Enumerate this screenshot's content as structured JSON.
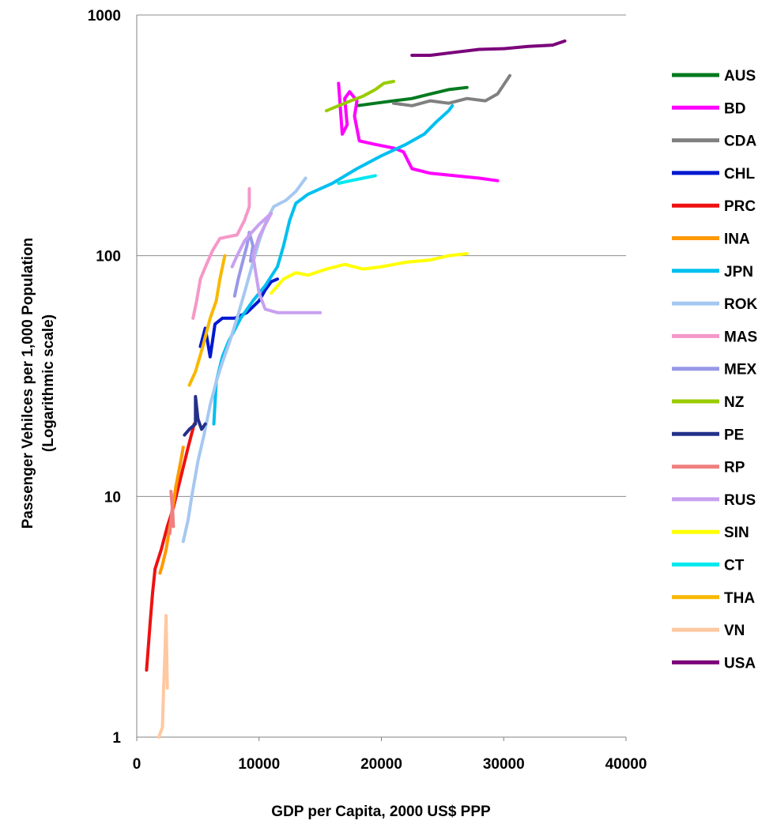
{
  "chart_data": {
    "type": "line",
    "title": "",
    "xlabel": "GDP per Capita, 2000 US$ PPP",
    "ylabel": "Passenger Vehilces per 1,000 Population",
    "ylabel_sub": "(Logarithmic scale)",
    "xlim": [
      0,
      40000
    ],
    "ylim": [
      1,
      1000
    ],
    "yscale": "log",
    "x_ticks": [
      "0",
      "10000",
      "20000",
      "30000",
      "40000"
    ],
    "y_ticks": [
      "1",
      "10",
      "100",
      "1000"
    ],
    "grid": "horizontal",
    "legend_position": "right",
    "series": [
      {
        "name": "AUS",
        "color": "#007a1f",
        "points": [
          [
            18000,
            420
          ],
          [
            19500,
            430
          ],
          [
            21000,
            440
          ],
          [
            22500,
            450
          ],
          [
            24000,
            470
          ],
          [
            25500,
            490
          ],
          [
            27000,
            500
          ]
        ]
      },
      {
        "name": "BD",
        "color": "#ff00ff",
        "points": [
          [
            16500,
            520
          ],
          [
            16800,
            320
          ],
          [
            17200,
            350
          ],
          [
            17000,
            450
          ],
          [
            17400,
            480
          ],
          [
            18000,
            440
          ],
          [
            17800,
            380
          ],
          [
            18200,
            300
          ],
          [
            19500,
            290
          ],
          [
            21000,
            280
          ],
          [
            21800,
            270
          ],
          [
            22500,
            230
          ],
          [
            24000,
            220
          ],
          [
            26000,
            215
          ],
          [
            28000,
            210
          ],
          [
            29500,
            205
          ]
        ]
      },
      {
        "name": "CDA",
        "color": "#808080",
        "points": [
          [
            21000,
            430
          ],
          [
            22500,
            420
          ],
          [
            24000,
            440
          ],
          [
            25500,
            430
          ],
          [
            27000,
            450
          ],
          [
            28500,
            440
          ],
          [
            29500,
            470
          ],
          [
            30500,
            560
          ]
        ]
      },
      {
        "name": "CHL",
        "color": "#0018d0",
        "points": [
          [
            5200,
            42
          ],
          [
            5600,
            50
          ],
          [
            6000,
            38
          ],
          [
            6400,
            52
          ],
          [
            7000,
            55
          ],
          [
            8000,
            55
          ],
          [
            9000,
            58
          ],
          [
            10000,
            65
          ],
          [
            10500,
            72
          ],
          [
            11000,
            78
          ],
          [
            11500,
            80
          ]
        ]
      },
      {
        "name": "PRC",
        "color": "#ee1111",
        "points": [
          [
            800,
            1.9
          ],
          [
            900,
            2.2
          ],
          [
            1100,
            3
          ],
          [
            1300,
            4
          ],
          [
            1500,
            5
          ],
          [
            2000,
            6
          ],
          [
            2500,
            7.5
          ],
          [
            3000,
            9
          ],
          [
            3600,
            12
          ],
          [
            4200,
            16
          ],
          [
            4700,
            20
          ]
        ]
      },
      {
        "name": "INA",
        "color": "#ff9900",
        "points": [
          [
            1900,
            4.8
          ],
          [
            2100,
            5.2
          ],
          [
            2400,
            6
          ],
          [
            2800,
            8
          ],
          [
            3200,
            11
          ],
          [
            3600,
            14
          ],
          [
            3800,
            16
          ]
        ]
      },
      {
        "name": "JPN",
        "color": "#00bff0",
        "points": [
          [
            6300,
            20
          ],
          [
            6500,
            30
          ],
          [
            7000,
            38
          ],
          [
            7500,
            44
          ],
          [
            8500,
            55
          ],
          [
            9500,
            65
          ],
          [
            10500,
            75
          ],
          [
            11500,
            90
          ],
          [
            12000,
            110
          ],
          [
            12500,
            140
          ],
          [
            13000,
            165
          ],
          [
            14000,
            180
          ],
          [
            16000,
            200
          ],
          [
            18000,
            230
          ],
          [
            20000,
            260
          ],
          [
            22000,
            290
          ],
          [
            23500,
            320
          ],
          [
            24500,
            360
          ],
          [
            25500,
            400
          ],
          [
            25800,
            420
          ]
        ]
      },
      {
        "name": "ROK",
        "color": "#a6c8f0",
        "points": [
          [
            3800,
            6.5
          ],
          [
            4200,
            8
          ],
          [
            4500,
            10
          ],
          [
            5000,
            14
          ],
          [
            5500,
            18
          ],
          [
            6000,
            24
          ],
          [
            6500,
            30
          ],
          [
            7000,
            36
          ],
          [
            7600,
            44
          ],
          [
            8200,
            55
          ],
          [
            8800,
            70
          ],
          [
            9400,
            90
          ],
          [
            10000,
            115
          ],
          [
            10600,
            140
          ],
          [
            11200,
            160
          ],
          [
            12200,
            170
          ],
          [
            13000,
            185
          ],
          [
            13800,
            210
          ]
        ]
      },
      {
        "name": "MAS",
        "color": "#f598c8",
        "points": [
          [
            4600,
            55
          ],
          [
            4900,
            65
          ],
          [
            5200,
            80
          ],
          [
            5700,
            92
          ],
          [
            6200,
            105
          ],
          [
            6800,
            118
          ],
          [
            7500,
            120
          ],
          [
            8200,
            122
          ],
          [
            8800,
            140
          ],
          [
            9200,
            160
          ],
          [
            9200,
            190
          ]
        ]
      },
      {
        "name": "MEX",
        "color": "#9898e8",
        "points": [
          [
            8000,
            68
          ],
          [
            8300,
            80
          ],
          [
            8600,
            92
          ],
          [
            9000,
            110
          ],
          [
            9200,
            125
          ],
          [
            9500,
            110
          ],
          [
            9300,
            95
          ]
        ]
      },
      {
        "name": "NZ",
        "color": "#99cc00",
        "points": [
          [
            15500,
            400
          ],
          [
            16500,
            420
          ],
          [
            17500,
            440
          ],
          [
            18500,
            460
          ],
          [
            19500,
            490
          ],
          [
            20200,
            520
          ],
          [
            21000,
            530
          ]
        ]
      },
      {
        "name": "PE",
        "color": "#24308a",
        "points": [
          [
            3900,
            18
          ],
          [
            4300,
            19
          ],
          [
            4800,
            20
          ],
          [
            4800,
            26
          ],
          [
            5000,
            21
          ],
          [
            5300,
            19
          ],
          [
            5600,
            20
          ]
        ]
      },
      {
        "name": "RP",
        "color": "#f08080",
        "points": [
          [
            2700,
            7
          ],
          [
            2800,
            8
          ],
          [
            2900,
            9
          ],
          [
            2800,
            10.5
          ],
          [
            2900,
            9.5
          ],
          [
            3000,
            7.5
          ]
        ]
      },
      {
        "name": "RUS",
        "color": "#c8a0f0",
        "points": [
          [
            7800,
            90
          ],
          [
            8200,
            100
          ],
          [
            8800,
            115
          ],
          [
            9400,
            125
          ],
          [
            10000,
            135
          ],
          [
            11000,
            150
          ],
          [
            10000,
            120
          ],
          [
            9500,
            100
          ],
          [
            10000,
            70
          ],
          [
            10500,
            60
          ],
          [
            11500,
            58
          ],
          [
            13000,
            58
          ],
          [
            15000,
            58
          ]
        ]
      },
      {
        "name": "SIN",
        "color": "#ffff00",
        "points": [
          [
            11000,
            70
          ],
          [
            12000,
            80
          ],
          [
            13000,
            85
          ],
          [
            14000,
            83
          ],
          [
            15500,
            88
          ],
          [
            17000,
            92
          ],
          [
            18500,
            88
          ],
          [
            20000,
            90
          ],
          [
            22000,
            94
          ],
          [
            24000,
            96
          ],
          [
            25500,
            100
          ],
          [
            27000,
            102
          ]
        ]
      },
      {
        "name": "CT",
        "color": "#00e8f0",
        "points": [
          [
            16500,
            200
          ],
          [
            17500,
            205
          ],
          [
            18500,
            210
          ],
          [
            19500,
            215
          ]
        ]
      },
      {
        "name": "THA",
        "color": "#f8b800",
        "points": [
          [
            4300,
            29
          ],
          [
            4800,
            33
          ],
          [
            5400,
            42
          ],
          [
            6000,
            55
          ],
          [
            6500,
            65
          ],
          [
            6800,
            80
          ],
          [
            7200,
            100
          ]
        ]
      },
      {
        "name": "VN",
        "color": "#ffc8a0",
        "points": [
          [
            1800,
            1
          ],
          [
            2100,
            1.1
          ],
          [
            2200,
            1.6
          ],
          [
            2300,
            2.2
          ],
          [
            2400,
            3.2
          ],
          [
            2500,
            1.6
          ]
        ]
      },
      {
        "name": "USA",
        "color": "#7a007a",
        "points": [
          [
            22500,
            680
          ],
          [
            24000,
            680
          ],
          [
            26000,
            700
          ],
          [
            28000,
            720
          ],
          [
            30000,
            725
          ],
          [
            32000,
            740
          ],
          [
            34000,
            750
          ],
          [
            35000,
            780
          ]
        ]
      }
    ]
  }
}
